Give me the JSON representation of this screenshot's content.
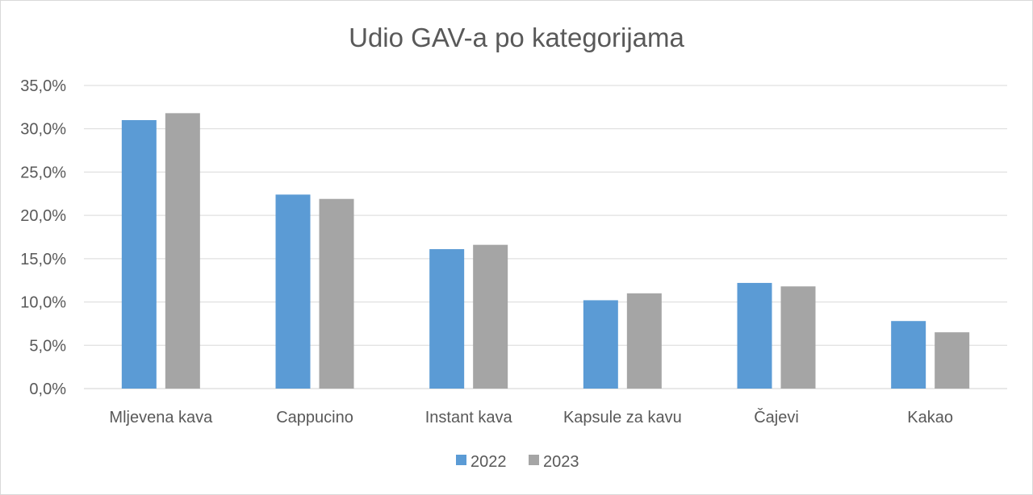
{
  "chart_data": {
    "type": "bar",
    "title": "Udio GAV-a po kategorijama",
    "categories": [
      "Mljevena kava",
      "Cappucino",
      "Instant kava",
      "Kapsule za kavu",
      "Čajevi",
      "Kakao"
    ],
    "series": [
      {
        "name": "2022",
        "color": "#5b9bd5",
        "values": [
          31.0,
          22.4,
          16.1,
          10.2,
          12.2,
          7.8
        ]
      },
      {
        "name": "2023",
        "color": "#a5a5a5",
        "values": [
          31.8,
          21.9,
          16.6,
          11.0,
          11.8,
          6.5
        ]
      }
    ],
    "ylim": [
      0,
      35
    ],
    "yticks": [
      "0,0%",
      "5,0%",
      "10,0%",
      "15,0%",
      "20,0%",
      "25,0%",
      "30,0%",
      "35,0%"
    ],
    "grid": true,
    "legend_position": "bottom"
  }
}
